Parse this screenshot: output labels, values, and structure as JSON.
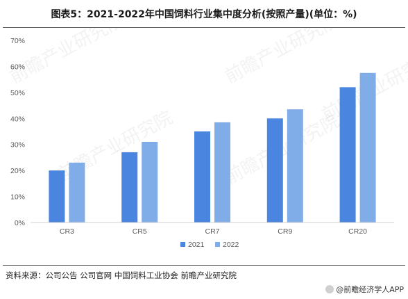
{
  "title": "图表5：2021-2022年中国饲料行业集中度分析(按照产量)(单位：%)",
  "source": "资料来源：公司公告 公司官网 中国饲料工业协会 前瞻产业研究院",
  "credit": "@前瞻经济学人APP",
  "watermark": "前瞻产业研究院",
  "colors": {
    "s2021": "#4a86e0",
    "s2022": "#80ace8",
    "axis": "#d0d0d0",
    "tick": "#595959"
  },
  "chart_data": {
    "type": "bar",
    "categories": [
      "CR3",
      "CR5",
      "CR7",
      "CR9",
      "CR20"
    ],
    "series": [
      {
        "name": "2021",
        "values": [
          20,
          27,
          35,
          40,
          52
        ]
      },
      {
        "name": "2022",
        "values": [
          23,
          31,
          38.5,
          43.5,
          57.5
        ]
      }
    ],
    "yticks": [
      "0%",
      "10%",
      "20%",
      "30%",
      "40%",
      "50%",
      "60%",
      "70%"
    ],
    "ylim": [
      0,
      70
    ],
    "grid": false,
    "legend": "bottom-center"
  }
}
